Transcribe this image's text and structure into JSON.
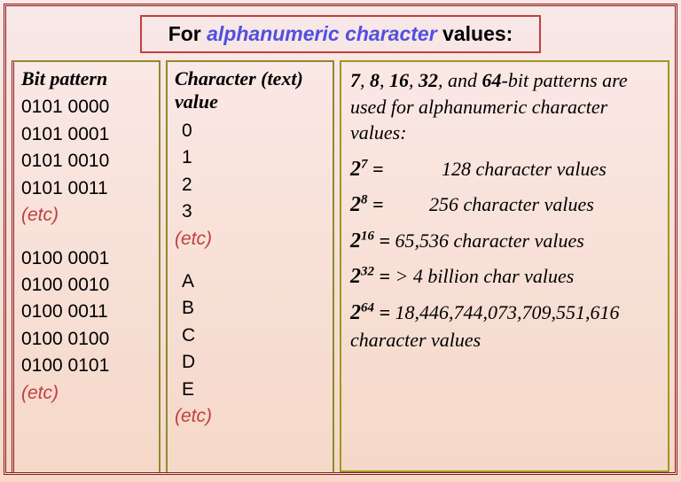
{
  "title": {
    "prefix": "For ",
    "emphasis": "alphanumeric character",
    "suffix": " values:"
  },
  "col1": {
    "header": "Bit pattern",
    "group1": [
      "0101 0000",
      "0101 0001",
      "0101 0010",
      "0101 0011"
    ],
    "etc1": "(etc)",
    "group2": [
      "0100 0001",
      "0100 0010",
      "0100 0011",
      "0100 0100",
      "0100 0101"
    ],
    "etc2": "(etc)"
  },
  "col2": {
    "header": "Character (text) value",
    "group1": [
      "0",
      "1",
      "2",
      "3"
    ],
    "etc1": "(etc)",
    "group2": [
      "A",
      "B",
      "C",
      "D",
      "E"
    ],
    "etc2": "(etc)"
  },
  "col3": {
    "intro_bits": [
      "7",
      "8",
      "16",
      "32",
      "64"
    ],
    "intro_tail": "-bit patterns are used for alphanumeric character values:",
    "powers": [
      {
        "exp": "7",
        "val": "128 character values",
        "pad": "pad1"
      },
      {
        "exp": "8",
        "val": "256 character values",
        "pad": "pad2"
      },
      {
        "exp": "16",
        "val": "65,536  character values",
        "pad": ""
      },
      {
        "exp": "32",
        "val": "> 4 billion char values",
        "pad": ""
      }
    ],
    "last": {
      "exp": "64",
      "val": "18,446,744,073,709,551,616 character values"
    }
  },
  "style": {
    "accent_color": "#c04040",
    "emphasis_color": "#5050e0",
    "border_olive": "#9a9a20",
    "border_dark": "#8b1a1a",
    "bg_top": "#f8e8e8",
    "bg_bottom": "#f5d8c8"
  }
}
